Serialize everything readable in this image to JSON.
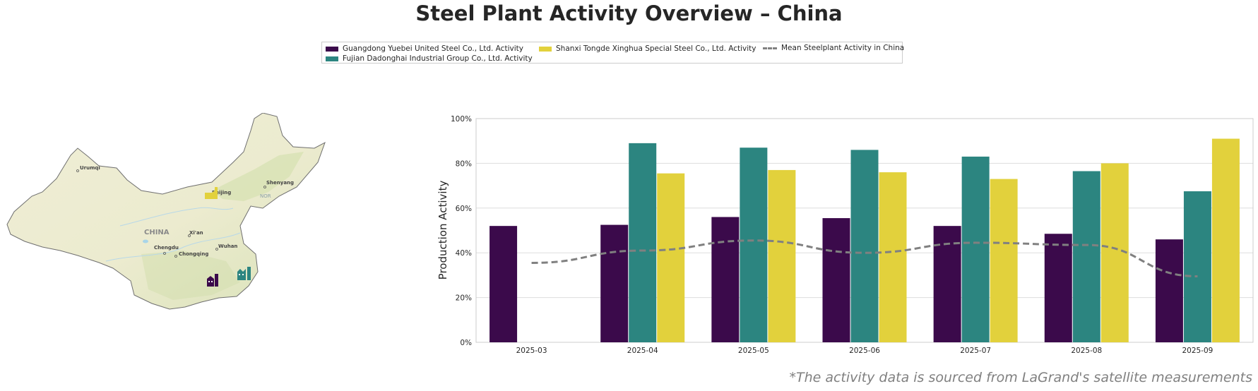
{
  "title": "Steel Plant Activity Overview – China",
  "footnote": "*The activity data is sourced from LaGrand's satellite measurements",
  "colors": {
    "guangdong": "#3b0a4b",
    "fujian": "#2c8580",
    "shanxi": "#e2d13c",
    "mean": "#808080"
  },
  "legend": {
    "items": [
      {
        "label": "Guangdong Yuebei United Steel Co., Ltd. Activity",
        "color": "#3b0a4b",
        "kind": "bar"
      },
      {
        "label": "Fujian Dadonghai Industrial Group Co., Ltd. Activity",
        "color": "#2c8580",
        "kind": "bar"
      },
      {
        "label": "Shanxi Tongde Xinghua Special Steel Co., Ltd. Activity",
        "color": "#e2d13c",
        "kind": "bar"
      },
      {
        "label": "Mean Steelplant Activity in China",
        "color": "#808080",
        "kind": "dashed-line"
      }
    ]
  },
  "map": {
    "country_label": "CHINA",
    "cities": [
      "Urumqi",
      "Beijing",
      "Shenyang",
      "Xi'an",
      "Chengdu",
      "Chongqing",
      "Wuhan"
    ],
    "sea_label": "NOR",
    "markers": [
      {
        "name": "guangdong-plant-icon",
        "color": "#3b0a4b"
      },
      {
        "name": "fujian-plant-icon",
        "color": "#2c8580"
      },
      {
        "name": "shanxi-plant-icon",
        "color": "#e2d13c"
      }
    ]
  },
  "chart_data": {
    "type": "bar",
    "categories": [
      "2025-03",
      "2025-04",
      "2025-05",
      "2025-06",
      "2025-07",
      "2025-08",
      "2025-09"
    ],
    "series": [
      {
        "name": "Guangdong Yuebei United Steel Co., Ltd. Activity",
        "values": [
          52,
          52.5,
          56,
          55.5,
          52,
          48.5,
          46
        ]
      },
      {
        "name": "Fujian Dadonghai Industrial Group Co., Ltd. Activity",
        "values": [
          null,
          89,
          87,
          86,
          83,
          76.5,
          67.5
        ]
      },
      {
        "name": "Shanxi Tongde Xinghua Special Steel Co., Ltd. Activity",
        "values": [
          null,
          75.5,
          77,
          76,
          73,
          80,
          91
        ]
      }
    ],
    "line": {
      "name": "Mean Steelplant Activity in China",
      "values": [
        35.5,
        41,
        45.5,
        40,
        44.5,
        43.5,
        29.5
      ]
    },
    "ylabel": "Production Activity",
    "xlabel": "",
    "ylim": [
      0,
      100
    ],
    "yticks": [
      "0%",
      "20%",
      "40%",
      "60%",
      "80%",
      "100%"
    ],
    "grid": true,
    "legend_position": "top-center"
  }
}
